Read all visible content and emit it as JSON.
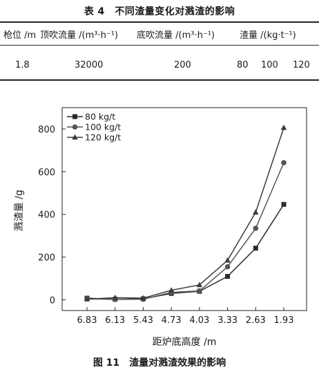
{
  "table": {
    "title": "表 4　不同渣量变化对溅渣的影响",
    "headers": [
      "枪位 /m",
      "顶吹流量 /(m³·h⁻¹)",
      "底吹流量 /(m³·h⁻¹)",
      "渣量 /(kg·t⁻¹)"
    ],
    "row": {
      "lance": "1.8",
      "top_flow": "32000",
      "bottom_flow": "200",
      "slag": [
        "80",
        "100",
        "120"
      ]
    }
  },
  "figure": {
    "caption": "图 11　渣量对溅渣效果的影响"
  },
  "chart_data": {
    "type": "line",
    "xlabel": "距炉底高度 /m",
    "ylabel": "溅渣量 /g",
    "categories": [
      "6.83",
      "6.13",
      "5.43",
      "4.73",
      "4.03",
      "3.33",
      "2.63",
      "1.93"
    ],
    "ylim": [
      -50,
      900
    ],
    "yticks": [
      0,
      200,
      400,
      600,
      800
    ],
    "legend_position": "top-left",
    "grid": false,
    "series": [
      {
        "name": "80 kg/t",
        "marker": "square",
        "values": [
          8,
          3,
          5,
          30,
          40,
          110,
          242,
          447
        ]
      },
      {
        "name": "100 kg/t",
        "marker": "circle",
        "values": [
          5,
          2,
          3,
          35,
          42,
          155,
          335,
          642
        ]
      },
      {
        "name": "120 kg/t",
        "marker": "triangle",
        "values": [
          3,
          10,
          8,
          45,
          70,
          185,
          410,
          806
        ]
      }
    ]
  }
}
